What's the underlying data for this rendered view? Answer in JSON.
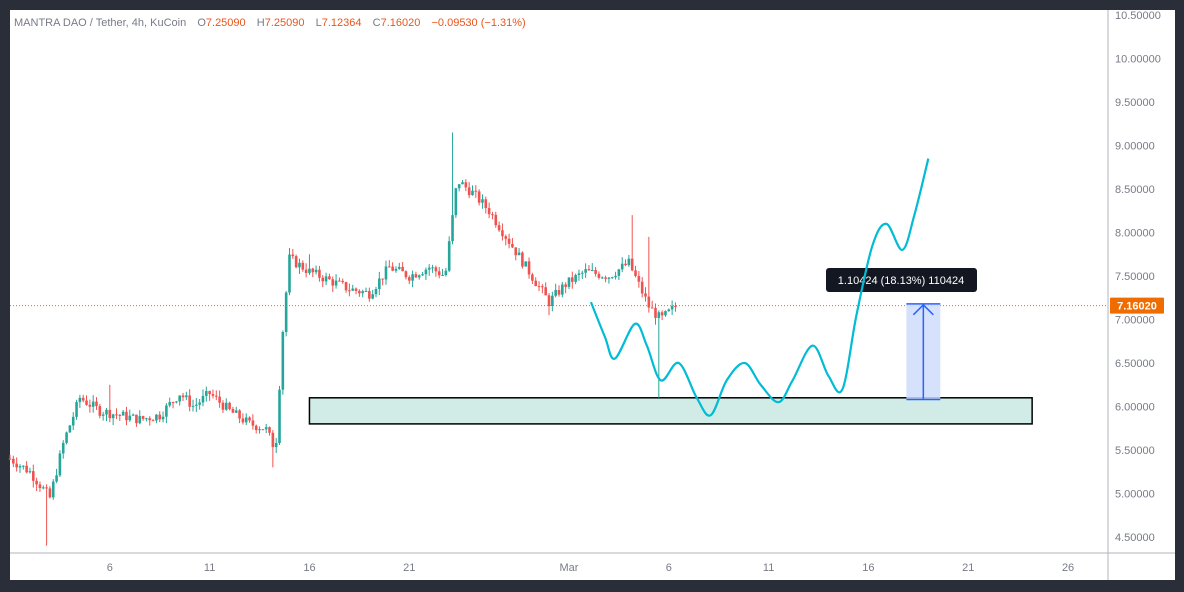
{
  "header": {
    "symbol": "MANTRA DAO / Tether, 4h, KuCoin",
    "o_key": "O",
    "o_val": "7.25090",
    "h_key": "H",
    "h_val": "7.25090",
    "l_key": "L",
    "l_val": "7.12364",
    "c_key": "C",
    "c_val": "7.16020",
    "change": "−0.09530 (−1.31%)"
  },
  "colors": {
    "up": "#26a69a",
    "down": "#ef5350",
    "projection": "#00bcd4",
    "zone_fill": "#d1ece6",
    "measure_fill": "#cfdcfb",
    "measure_line": "#2962ff",
    "price_tag": "#ef6c00"
  },
  "chart_data": {
    "type": "candlestick",
    "title": "MANTRA DAO / Tether, 4h, KuCoin",
    "xlabel": "",
    "ylabel": "",
    "ylim": [
      4.4,
      10.6
    ],
    "y_ticks": [
      "10.50000",
      "10.00000",
      "9.50000",
      "9.00000",
      "8.50000",
      "8.00000",
      "7.50000",
      "7.00000",
      "6.50000",
      "6.00000",
      "5.50000",
      "5.00000",
      "4.50000"
    ],
    "y_tick_values": [
      10.5,
      10.0,
      9.5,
      9.0,
      8.5,
      8.0,
      7.5,
      7.0,
      6.5,
      6.0,
      5.5,
      5.0,
      4.5
    ],
    "x_ticks": [
      "6",
      "11",
      "16",
      "21",
      "Mar",
      "6",
      "11",
      "16",
      "21",
      "26"
    ],
    "x_tick_days": [
      6,
      11,
      16,
      21,
      29,
      34,
      39,
      44,
      49,
      54
    ],
    "x_range_days": [
      1,
      56
    ],
    "current_price": "7.16020",
    "current_price_value": 7.1602,
    "price_anchors": [
      [
        1.0,
        5.4
      ],
      [
        2.0,
        5.25
      ],
      [
        3.0,
        4.95
      ],
      [
        3.7,
        5.6
      ],
      [
        4.5,
        6.1
      ],
      [
        5.5,
        5.95
      ],
      [
        6.5,
        5.9
      ],
      [
        7.5,
        5.85
      ],
      [
        8.5,
        5.9
      ],
      [
        9.5,
        6.15
      ],
      [
        10.2,
        6.0
      ],
      [
        11.0,
        6.15
      ],
      [
        12.0,
        5.95
      ],
      [
        13.0,
        5.8
      ],
      [
        13.8,
        5.75
      ],
      [
        14.3,
        5.5
      ],
      [
        14.7,
        7.0
      ],
      [
        15.0,
        7.7
      ],
      [
        16.0,
        7.55
      ],
      [
        17.0,
        7.45
      ],
      [
        18.0,
        7.35
      ],
      [
        19.0,
        7.3
      ],
      [
        20.0,
        7.6
      ],
      [
        21.0,
        7.5
      ],
      [
        22.0,
        7.6
      ],
      [
        22.8,
        7.5
      ],
      [
        23.4,
        8.6
      ],
      [
        24.2,
        8.45
      ],
      [
        25.0,
        8.25
      ],
      [
        26.0,
        7.9
      ],
      [
        27.0,
        7.55
      ],
      [
        28.0,
        7.2
      ],
      [
        28.8,
        7.4
      ],
      [
        29.8,
        7.55
      ],
      [
        31.0,
        7.5
      ],
      [
        32.0,
        7.65
      ],
      [
        33.0,
        7.15
      ],
      [
        33.6,
        7.0
      ],
      [
        34.4,
        7.16
      ]
    ],
    "wick_highs": [
      [
        23.1,
        9.15
      ],
      [
        32.2,
        8.2
      ],
      [
        33.0,
        7.95
      ],
      [
        16.0,
        7.75
      ],
      [
        6.0,
        6.25
      ]
    ],
    "wick_lows": [
      [
        2.8,
        4.4
      ],
      [
        14.2,
        5.3
      ],
      [
        33.5,
        6.1
      ],
      [
        28.0,
        7.05
      ]
    ],
    "projection_path": [
      [
        30.1,
        7.2
      ],
      [
        30.8,
        6.8
      ],
      [
        31.3,
        6.55
      ],
      [
        32.3,
        6.95
      ],
      [
        32.9,
        6.7
      ],
      [
        33.6,
        6.3
      ],
      [
        34.5,
        6.5
      ],
      [
        35.4,
        6.1
      ],
      [
        36.1,
        5.9
      ],
      [
        36.9,
        6.3
      ],
      [
        37.8,
        6.5
      ],
      [
        38.6,
        6.25
      ],
      [
        39.5,
        6.05
      ],
      [
        40.2,
        6.3
      ],
      [
        41.2,
        6.7
      ],
      [
        42.0,
        6.35
      ],
      [
        42.7,
        6.2
      ],
      [
        43.4,
        7.05
      ],
      [
        44.2,
        7.85
      ],
      [
        44.9,
        8.1
      ],
      [
        45.7,
        7.8
      ],
      [
        46.3,
        8.2
      ],
      [
        47.0,
        8.85
      ]
    ],
    "support_zone": {
      "from_day": 16.0,
      "to_day": 52.2,
      "y_low": 5.8,
      "y_high": 6.1
    },
    "measure": {
      "from_day": 45.9,
      "to_day": 47.6,
      "y_low": 6.08,
      "y_high": 7.18,
      "label": "1.10424 (18.13%) 110424"
    }
  }
}
